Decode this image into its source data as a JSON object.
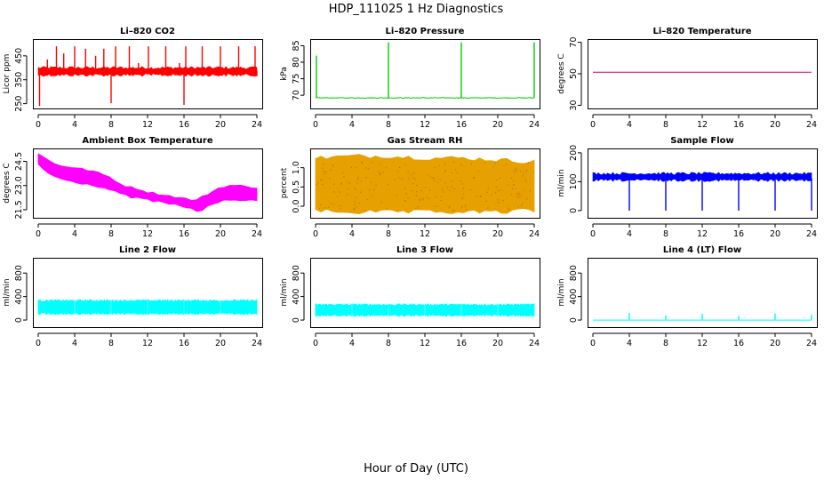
{
  "title": "HDP_111025  1 Hz Diagnostics",
  "xlabel": "Hour of Day (UTC)",
  "x_ticks": [
    "0",
    "4",
    "8",
    "12",
    "16",
    "20",
    "24"
  ],
  "chart_data": [
    {
      "type": "line",
      "title": "Li–820 CO2",
      "ylabel": "Licor ppm",
      "color": "#ff0000",
      "xlim": [
        0,
        24
      ],
      "ylim": [
        230,
        520
      ],
      "yticks": [
        250,
        350,
        450
      ],
      "series": [
        {
          "name": "Li-820 CO2",
          "baseline": 385,
          "band": [
            370,
            400
          ],
          "fill_band": true,
          "spikes": [
            {
              "x": 0.15,
              "y": 240
            },
            {
              "x": 1.0,
              "y": 435
            },
            {
              "x": 2.0,
              "y": 490
            },
            {
              "x": 2.8,
              "y": 460
            },
            {
              "x": 4.0,
              "y": 490
            },
            {
              "x": 5.2,
              "y": 480
            },
            {
              "x": 6.3,
              "y": 450
            },
            {
              "x": 7.2,
              "y": 480
            },
            {
              "x": 8.0,
              "y": 252
            },
            {
              "x": 8.5,
              "y": 490
            },
            {
              "x": 10.0,
              "y": 490
            },
            {
              "x": 11.0,
              "y": 420
            },
            {
              "x": 12.1,
              "y": 490
            },
            {
              "x": 14.0,
              "y": 490
            },
            {
              "x": 15.5,
              "y": 420
            },
            {
              "x": 16.0,
              "y": 245
            },
            {
              "x": 16.2,
              "y": 490
            },
            {
              "x": 18.0,
              "y": 490
            },
            {
              "x": 20.0,
              "y": 490
            },
            {
              "x": 22.0,
              "y": 490
            },
            {
              "x": 23.8,
              "y": 490
            },
            {
              "x": 24.0,
              "y": 365
            }
          ]
        }
      ]
    },
    {
      "type": "line",
      "title": "Li–820 Pressure",
      "ylabel": "kPa",
      "color": "#00cc00",
      "xlim": [
        0,
        24
      ],
      "ylim": [
        66,
        87
      ],
      "yticks": [
        70,
        75,
        80,
        85
      ],
      "series": [
        {
          "name": "Li-820 Pressure",
          "baseline": 69.2,
          "band": [
            68.8,
            69.5
          ],
          "fill_band": false,
          "spikes": [
            {
              "x": 0.1,
              "y": 82
            },
            {
              "x": 8.0,
              "y": 86
            },
            {
              "x": 16.0,
              "y": 86
            },
            {
              "x": 24.0,
              "y": 86
            }
          ]
        }
      ]
    },
    {
      "type": "line",
      "title": "Li–820 Temperature",
      "ylabel": "degrees C",
      "color": "#cc0066",
      "xlim": [
        0,
        24
      ],
      "ylim": [
        28,
        72
      ],
      "yticks": [
        30,
        50,
        70
      ],
      "series": [
        {
          "name": "Li-820 Temperature",
          "baseline": 51,
          "band": [
            51,
            51
          ],
          "fill_band": false,
          "spikes": []
        }
      ]
    },
    {
      "type": "area",
      "title": "Ambient Box Temperature",
      "ylabel": "degrees C",
      "color": "#ff00ff",
      "xlim": [
        0,
        24
      ],
      "ylim": [
        21.0,
        25.3
      ],
      "yticks": [
        21.5,
        23.0,
        24.5
      ],
      "series": [
        {
          "name": "Ambient Box Temperature",
          "x": [
            0,
            1,
            2,
            3,
            4,
            5,
            6,
            7,
            8,
            9,
            10,
            11,
            12,
            13,
            14,
            15,
            16,
            17,
            17.5,
            18,
            19,
            20,
            21,
            22,
            23,
            24
          ],
          "upper": [
            25.0,
            24.6,
            24.3,
            24.2,
            24.1,
            24.0,
            23.9,
            23.7,
            23.5,
            23.1,
            22.9,
            22.8,
            22.6,
            22.5,
            22.4,
            22.3,
            22.2,
            22.1,
            22.1,
            22.3,
            22.6,
            22.9,
            23.0,
            23.0,
            22.9,
            22.9
          ],
          "lower": [
            24.3,
            23.8,
            23.5,
            23.3,
            23.2,
            23.1,
            23.0,
            22.9,
            22.7,
            22.5,
            22.3,
            22.2,
            22.1,
            22.0,
            21.9,
            21.8,
            21.7,
            21.5,
            21.4,
            21.5,
            21.8,
            22.0,
            22.1,
            22.1,
            22.1,
            22.0
          ]
        }
      ]
    },
    {
      "type": "area",
      "title": "Gas Stream RH",
      "ylabel": "percent",
      "color": "#e6a100",
      "xlim": [
        0,
        24
      ],
      "ylim": [
        -0.3,
        1.5
      ],
      "yticks": [
        0.0,
        0.5,
        1.0
      ],
      "series": [
        {
          "name": "Gas Stream RH",
          "x": [
            0,
            4,
            8,
            12,
            16,
            20,
            24
          ],
          "upper": [
            1.25,
            1.3,
            1.3,
            1.25,
            1.25,
            1.2,
            1.15
          ],
          "lower": [
            -0.1,
            -0.15,
            -0.15,
            -0.15,
            -0.15,
            -0.15,
            -0.1
          ]
        }
      ]
    },
    {
      "type": "line",
      "title": "Sample Flow",
      "ylabel": "ml/min",
      "color": "#0000ff",
      "xlim": [
        0,
        24
      ],
      "ylim": [
        -25,
        215
      ],
      "yticks": [
        0,
        100,
        200
      ],
      "series": [
        {
          "name": "Sample Flow",
          "baseline": 112,
          "band": [
            105,
            128
          ],
          "fill_band": true,
          "spikes": [
            {
              "x": 4.0,
              "y": 0
            },
            {
              "x": 8.0,
              "y": 0
            },
            {
              "x": 12.0,
              "y": 0
            },
            {
              "x": 16.0,
              "y": 0
            },
            {
              "x": 20.0,
              "y": 0
            },
            {
              "x": 24.0,
              "y": 0
            }
          ]
        }
      ]
    },
    {
      "type": "area",
      "title": "Line 2 Flow",
      "ylabel": "ml/min",
      "color": "#00ffff",
      "xlim": [
        0,
        24
      ],
      "ylim": [
        -120,
        1060
      ],
      "yticks": [
        0,
        400,
        800
      ],
      "series": [
        {
          "name": "Line 2 Flow",
          "x": [
            0,
            24
          ],
          "upper": [
            330,
            330
          ],
          "lower": [
            110,
            110
          ],
          "gaps": [
            4.0,
            8.0,
            12.0,
            16.0,
            20.0
          ]
        }
      ]
    },
    {
      "type": "area",
      "title": "Line 3 Flow",
      "ylabel": "ml/min",
      "color": "#00ffff",
      "xlim": [
        0,
        24
      ],
      "ylim": [
        -120,
        1060
      ],
      "yticks": [
        0,
        400,
        800
      ],
      "series": [
        {
          "name": "Line 3 Flow",
          "x": [
            0,
            24
          ],
          "upper": [
            260,
            260
          ],
          "lower": [
            80,
            80
          ],
          "gaps": [
            4.0,
            8.0,
            12.0,
            16.0,
            20.0
          ]
        }
      ]
    },
    {
      "type": "line",
      "title": "Line 4 (LT) Flow",
      "ylabel": "ml/min",
      "color": "#00ffff",
      "xlim": [
        0,
        24
      ],
      "ylim": [
        -120,
        1060
      ],
      "yticks": [
        0,
        400,
        800
      ],
      "series": [
        {
          "name": "Line 4 (LT) Flow",
          "baseline": 0,
          "band": [
            0,
            0
          ],
          "fill_band": false,
          "spikes": [
            {
              "x": 4.0,
              "y": 120
            },
            {
              "x": 8.0,
              "y": 80
            },
            {
              "x": 12.0,
              "y": 110
            },
            {
              "x": 16.0,
              "y": 70
            },
            {
              "x": 20.0,
              "y": 110
            },
            {
              "x": 24.0,
              "y": 90
            }
          ]
        }
      ]
    }
  ]
}
